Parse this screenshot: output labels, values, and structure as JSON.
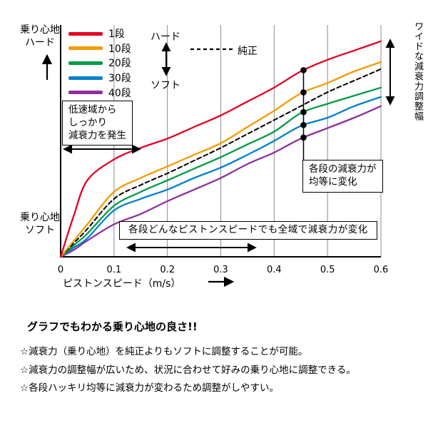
{
  "chart_data": {
    "type": "line",
    "title": "",
    "xlabel": "ピストンスピード（m/s）",
    "xlim": [
      0,
      0.6
    ],
    "ylim": [
      0,
      100
    ],
    "x_ticks": [
      0,
      0.1,
      0.2,
      0.3,
      0.4,
      0.5,
      0.6
    ],
    "x_tick_labels": [
      "0",
      "0.1",
      "0.2",
      "0.3",
      "0.4",
      "0.5",
      "0.6"
    ],
    "grid": "vertical-only",
    "legend_position": "top-left",
    "ylabel_top": "乗り心地\nハード",
    "ylabel_bottom": "乗り心地\nソフト",
    "x": [
      0,
      0.025,
      0.05,
      0.1,
      0.15,
      0.2,
      0.25,
      0.3,
      0.35,
      0.4,
      0.45,
      0.5,
      0.55,
      0.6
    ],
    "series": [
      {
        "name": "1段",
        "color": "#e60021",
        "dashed": false,
        "values": [
          0,
          18,
          33,
          42,
          47,
          51,
          56,
          61,
          67,
          73,
          80,
          85,
          89,
          93
        ]
      },
      {
        "name": "10段",
        "color": "#f59b00",
        "dashed": false,
        "values": [
          0,
          7,
          14,
          28,
          34,
          39,
          44,
          49,
          56,
          63,
          70.5,
          75,
          80,
          84
        ]
      },
      {
        "name": "20段",
        "color": "#009b44",
        "dashed": false,
        "values": [
          0,
          5,
          10,
          22,
          28,
          33,
          38,
          43,
          48.5,
          54,
          62,
          66,
          69.5,
          73
        ]
      },
      {
        "name": "30段",
        "color": "#0081cc",
        "dashed": false,
        "values": [
          0,
          4,
          8,
          20,
          25,
          29,
          34,
          38.5,
          44,
          50,
          56.5,
          60,
          65,
          69
        ]
      },
      {
        "name": "40段",
        "color": "#8e2f9e",
        "dashed": false,
        "values": [
          0,
          3,
          7,
          14,
          18.5,
          24,
          29,
          34,
          40,
          45,
          51,
          55.5,
          60,
          65
        ]
      },
      {
        "name": "純正",
        "color": "#000000",
        "dashed": true,
        "values": [
          0,
          6,
          12,
          25,
          31,
          36,
          41.5,
          47,
          53,
          59,
          65,
          71,
          76,
          81
        ]
      }
    ],
    "dots": {
      "x": 0.455,
      "on_series": [
        "1段",
        "10段",
        "20段",
        "30段",
        "40段"
      ]
    }
  },
  "legend": {
    "hard": "ハード",
    "soft": "ソフト"
  },
  "annotations": {
    "low_speed_box": "低速域から\nしっかり\n減衰力を発生",
    "equal_change_box": "各段の減衰力が\n均等に変化",
    "full_range_box": "各段どんなピストンスピードでも全域で減衰力が変化",
    "wide_range_label": "ワイドな減衰力調整幅"
  },
  "footer": {
    "heading": "グラフでもわかる乗り心地の良さ!!",
    "bullets": [
      "☆減衰力（乗り心地）を純正よりもソフトに調整することが可能。",
      "☆減衰力の調整幅が広いため、状況に合わせて好みの乗り心地に調整できる。",
      "☆各段ハッキリ均等に減衰力が変わるため調整がしやすい。"
    ]
  }
}
